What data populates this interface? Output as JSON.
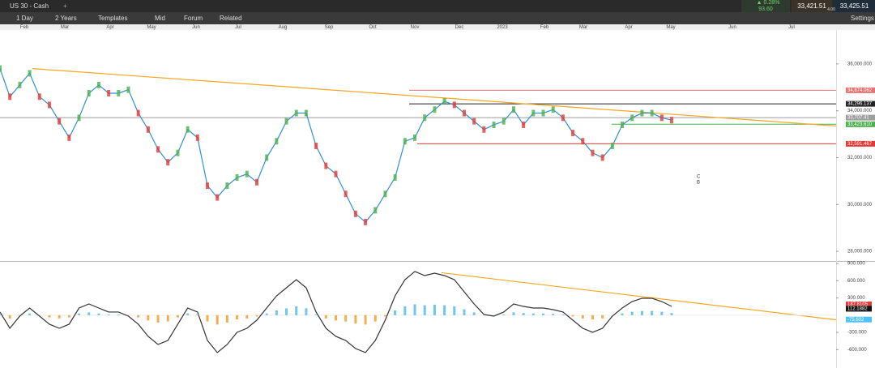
{
  "toolbar": {
    "symbol": "US 30 - Cash",
    "interval": "1 Day",
    "range": "2 Years",
    "buttons": [
      "Templates",
      "Mid",
      "Forum",
      "Related"
    ],
    "change": "0.28%",
    "change_points": "93.60",
    "sell": "33,421.51",
    "buy": "33,425.51",
    "spread": "4.00",
    "settings": "Settings"
  },
  "xtick_labels": [
    "Feb",
    "Mar",
    "Apr",
    "May",
    "Jun",
    "Jul",
    "Aug",
    "Sep",
    "Oct",
    "Nov",
    "Dec",
    "2023",
    "Feb",
    "Mar",
    "Apr",
    "May",
    "Jun",
    "Jul"
  ],
  "chart_data": [
    {
      "type": "line",
      "color": "#2f8fd8",
      "values": [
        35800,
        34600,
        35100,
        35600,
        34600,
        34250,
        33550,
        32850,
        33700,
        34750,
        35100,
        34750,
        34750,
        34900,
        33900,
        33200,
        32350,
        31800,
        32200,
        33200,
        32850,
        30800,
        30300,
        30800,
        31150,
        31300,
        30950,
        32000,
        32700,
        33550,
        33900,
        33900,
        32500,
        31650,
        31300,
        30450,
        29600,
        29250,
        29750,
        30450,
        31150,
        32700,
        32850,
        33700,
        34050,
        34400,
        34250,
        33900,
        33550,
        33200,
        33400,
        33550,
        34050,
        33400,
        33900,
        33900,
        34050,
        33700,
        33050,
        32700,
        32200,
        32000,
        32500,
        33400,
        33700,
        33900,
        33900,
        33700,
        33600
      ],
      "ylim": [
        27586,
        37448
      ],
      "yticks": [
        {
          "value": 36000,
          "label": "36,000.000"
        },
        {
          "value": 34000,
          "label": "34,000.000"
        },
        {
          "value": 32000,
          "label": "32,000.000"
        },
        {
          "value": 30000,
          "label": "30,000.000"
        },
        {
          "value": 28000,
          "label": "28,000.000"
        }
      ],
      "levels": [
        {
          "value": 34874.062,
          "label": "34,874.062",
          "color": "#e57373"
        },
        {
          "value": 34296.137,
          "label": "34,296.137",
          "color": "#222222"
        },
        {
          "value": 33707.41,
          "label": "33,707.41",
          "color": "#9e9e9e"
        },
        {
          "value": 33423.61,
          "label": "33,423.610",
          "color": "#4caf50"
        },
        {
          "value": 32591.467,
          "label": "32,591.467",
          "color": "#e53935"
        }
      ],
      "trendline": {
        "values": [
          35800,
          33350
        ],
        "color": "#f5a623"
      },
      "annotations": [
        "C",
        "B"
      ]
    },
    {
      "type": "line",
      "color": "#333333",
      "values": [
        55,
        -228,
        -16,
        125,
        -16,
        -157,
        -228,
        -157,
        125,
        196,
        125,
        55,
        55,
        -16,
        -157,
        -369,
        -510,
        -440,
        -157,
        125,
        55,
        -440,
        -651,
        -510,
        -298,
        -228,
        -87,
        125,
        337,
        478,
        619,
        478,
        55,
        -228,
        -369,
        -440,
        -581,
        -651,
        -440,
        -87,
        337,
        619,
        761,
        690,
        732,
        690,
        619,
        408,
        196,
        12,
        -16,
        55,
        196,
        153,
        125,
        125,
        97,
        55,
        -87,
        -228,
        -298,
        -228,
        -16,
        125,
        238,
        295,
        295,
        238,
        153
      ],
      "ylim": [
        -920,
        930
      ],
      "yticks": [
        {
          "value": 900,
          "label": "900.000"
        },
        {
          "value": 600,
          "label": "600.000"
        },
        {
          "value": 300,
          "label": "300.000"
        },
        {
          "value": -300,
          "label": "-300.000"
        },
        {
          "value": -600,
          "label": "-600.000"
        }
      ],
      "value_tags": [
        {
          "value": 187.8105,
          "color": "#e53935"
        },
        {
          "value": 112.1882,
          "color": "#111111"
        },
        {
          "value": -75.602,
          "color": "#4fc3f7"
        }
      ],
      "trendline": {
        "values": [
          740,
          -80
        ],
        "color": "#f5a623"
      }
    }
  ]
}
